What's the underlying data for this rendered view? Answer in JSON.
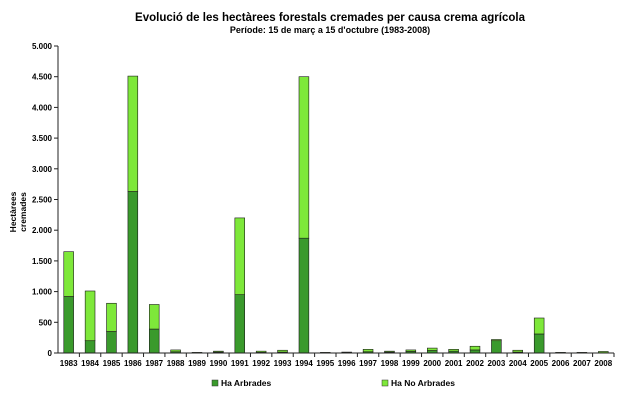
{
  "chart_data": {
    "type": "bar",
    "stacked": true,
    "title": "Evolució de les hectàrees forestals cremades per causa crema agrícola",
    "subtitle": "Període: 15 de març a 15 d'octubre (1983-2008)",
    "ylabel_lines": [
      "Hectàrees",
      "cremades"
    ],
    "xlabel": "",
    "ylim": [
      0,
      5000
    ],
    "yticks": [
      0,
      500,
      1000,
      1500,
      2000,
      2500,
      3000,
      3500,
      4000,
      4500,
      5000
    ],
    "ytick_labels": [
      "0",
      "500",
      "1.000",
      "1.500",
      "2.000",
      "2.500",
      "3.000",
      "3.500",
      "4.000",
      "4.500",
      "5.000"
    ],
    "grid": false,
    "legend_position": "bottom",
    "categories": [
      "1983",
      "1984",
      "1985",
      "1986",
      "1987",
      "1988",
      "1989",
      "1990",
      "1991",
      "1992",
      "1993",
      "1994",
      "1995",
      "1996",
      "1997",
      "1998",
      "1999",
      "2000",
      "2001",
      "2002",
      "2003",
      "2004",
      "2005",
      "2006",
      "2007",
      "2008"
    ],
    "series": [
      {
        "name": "Ha Arbrades",
        "color": "#3a9a2c",
        "values": [
          920,
          200,
          350,
          2630,
          390,
          20,
          5,
          15,
          950,
          10,
          15,
          1870,
          5,
          5,
          20,
          15,
          25,
          40,
          30,
          50,
          200,
          15,
          310,
          5,
          5,
          5
        ]
      },
      {
        "name": "Ha No Arbrades",
        "color": "#7ee83a",
        "values": [
          730,
          810,
          460,
          1880,
          400,
          30,
          5,
          15,
          1250,
          20,
          30,
          2630,
          5,
          10,
          40,
          15,
          25,
          40,
          30,
          60,
          20,
          30,
          260,
          5,
          5,
          20
        ]
      }
    ]
  }
}
